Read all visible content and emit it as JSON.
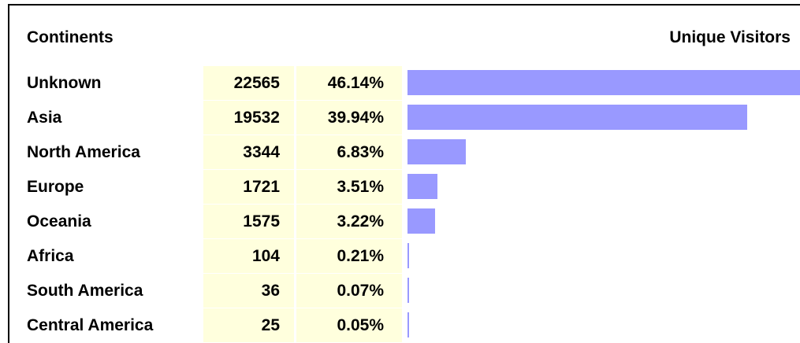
{
  "table": {
    "header": [
      "Continents",
      "Unique Visitors"
    ],
    "rows": [
      [
        "Unknown",
        22565,
        "46.14%"
      ],
      [
        "Asia",
        19532,
        "39.94%"
      ],
      [
        "North America",
        3344,
        "6.83%"
      ],
      [
        "Europe",
        1721,
        "3.51%"
      ],
      [
        "Oceania",
        1575,
        "3.22%"
      ],
      [
        "Africa",
        104,
        "0.21%"
      ],
      [
        "South America",
        36,
        "0.07%"
      ],
      [
        "Central America",
        25,
        "0.05%"
      ]
    ],
    "bar_color": "#9999ff",
    "cell_color": "#ffffdd"
  }
}
